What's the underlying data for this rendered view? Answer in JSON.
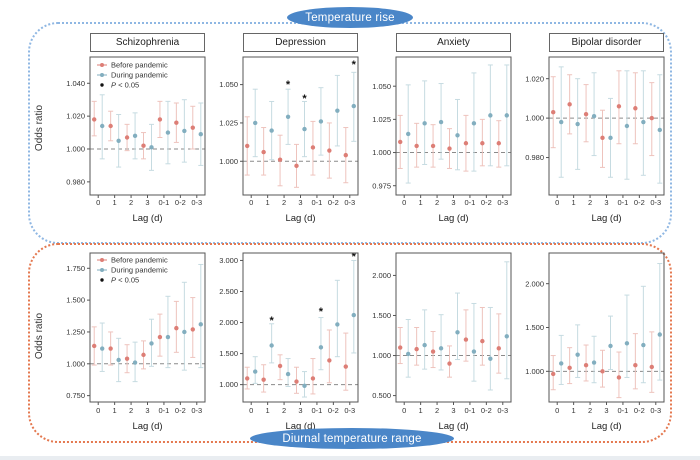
{
  "badges": {
    "top": "Temperature rise",
    "bottom": "Diurnal temperature range"
  },
  "legend": {
    "before": "Before pandemic",
    "during": "During pandemic",
    "pvalue": "P < 0.05"
  },
  "axis": {
    "xlabel": "Lag (d)",
    "ylabel": "Odds ratio",
    "categories": [
      "0",
      "1",
      "2",
      "3",
      "0-1",
      "0-2",
      "0-3"
    ]
  },
  "colors": {
    "before_marker": "#dd7e76",
    "before_bar": "#eec3bd",
    "during_marker": "#82aebf",
    "during_bar": "#c6dbe1",
    "star": "#111111",
    "ref_line": "#8a8a8a",
    "plot_border": "#555555",
    "badge_blue": "#4a86c8",
    "box_top_border": "#8fb7e3",
    "box_bottom_border": "#e4784f"
  },
  "chart_data": [
    {
      "type": "scatter",
      "row": "top",
      "group": "Temperature rise",
      "title": "Schizophrenia",
      "show_title": true,
      "show_legend": true,
      "ref_line": 1.0,
      "yticks": [
        0.98,
        1.0,
        1.02,
        1.04
      ],
      "ylim": [
        0.972,
        1.056
      ],
      "categories": [
        "0",
        "1",
        "2",
        "3",
        "0-1",
        "0-2",
        "0-3"
      ],
      "series": [
        {
          "name": "Before pandemic",
          "values": [
            1.018,
            1.014,
            1.007,
            1.002,
            1.018,
            1.016,
            1.013
          ],
          "lo": [
            1.008,
            1.005,
            0.999,
            0.994,
            1.007,
            1.004,
            1.0
          ],
          "hi": [
            1.029,
            1.023,
            1.015,
            1.01,
            1.029,
            1.028,
            1.026
          ]
        },
        {
          "name": "During pandemic",
          "values": [
            1.014,
            1.005,
            1.008,
            1.001,
            1.01,
            1.011,
            1.009
          ],
          "lo": [
            0.994,
            0.989,
            0.994,
            0.987,
            0.991,
            0.992,
            0.99
          ],
          "hi": [
            1.033,
            1.021,
            1.022,
            1.015,
            1.029,
            1.03,
            1.028
          ]
        }
      ]
    },
    {
      "type": "scatter",
      "row": "top",
      "group": "Temperature rise",
      "title": "Depression",
      "show_title": true,
      "show_legend": false,
      "ref_line": 1.0,
      "yticks": [
        1.0,
        1.025,
        1.05
      ],
      "ylim": [
        0.978,
        1.068
      ],
      "categories": [
        "0",
        "1",
        "2",
        "3",
        "0-1",
        "0-2",
        "0-3"
      ],
      "series": [
        {
          "name": "Before pandemic",
          "values": [
            1.01,
            1.006,
            1.001,
            0.997,
            1.009,
            1.007,
            1.004
          ],
          "lo": [
            0.991,
            0.991,
            0.984,
            0.983,
            0.991,
            0.989,
            0.986
          ],
          "hi": [
            1.029,
            1.022,
            1.017,
            1.011,
            1.026,
            1.025,
            1.022
          ]
        },
        {
          "name": "During pandemic",
          "values": [
            1.025,
            1.02,
            1.029,
            1.021,
            1.026,
            1.033,
            1.036
          ],
          "lo": [
            1.003,
            1.001,
            1.011,
            1.003,
            1.004,
            1.01,
            1.013
          ],
          "hi": [
            1.047,
            1.039,
            1.047,
            1.039,
            1.048,
            1.056,
            1.058
          ],
          "stars": [
            null,
            null,
            1.05,
            1.041,
            null,
            null,
            1.063
          ]
        }
      ]
    },
    {
      "type": "scatter",
      "row": "top",
      "group": "Temperature rise",
      "title": "Anxiety",
      "show_title": true,
      "show_legend": false,
      "ref_line": 1.0,
      "yticks": [
        0.975,
        1.0,
        1.025,
        1.05
      ],
      "ylim": [
        0.968,
        1.072
      ],
      "categories": [
        "0",
        "1",
        "2",
        "3",
        "0-1",
        "0-2",
        "0-3"
      ],
      "series": [
        {
          "name": "Before pandemic",
          "values": [
            1.008,
            1.005,
            1.005,
            1.003,
            1.007,
            1.007,
            1.007
          ],
          "lo": [
            0.988,
            0.989,
            0.989,
            0.988,
            0.986,
            0.99,
            0.989
          ],
          "hi": [
            1.028,
            1.022,
            1.021,
            1.018,
            1.028,
            1.025,
            1.024
          ]
        },
        {
          "name": "During pandemic",
          "values": [
            1.014,
            1.022,
            1.023,
            1.013,
            1.022,
            1.028,
            1.028
          ],
          "lo": [
            0.977,
            0.991,
            0.995,
            0.987,
            0.986,
            0.99,
            0.99
          ],
          "hi": [
            1.051,
            1.054,
            1.052,
            1.04,
            1.06,
            1.066,
            1.066
          ]
        }
      ]
    },
    {
      "type": "scatter",
      "row": "top",
      "group": "Temperature rise",
      "title": "Bipolar disorder",
      "show_title": true,
      "show_legend": false,
      "ref_line": 1.0,
      "yticks": [
        0.98,
        1.0,
        1.02
      ],
      "ylim": [
        0.961,
        1.031
      ],
      "categories": [
        "0",
        "1",
        "2",
        "3",
        "0-1",
        "0-2",
        "0-3"
      ],
      "series": [
        {
          "name": "Before pandemic",
          "values": [
            1.003,
            1.007,
            1.002,
            0.99,
            1.006,
            1.005,
            1.0
          ],
          "lo": [
            0.985,
            0.992,
            0.988,
            0.975,
            0.987,
            0.987,
            0.981
          ],
          "hi": [
            1.021,
            1.022,
            1.017,
            1.004,
            1.024,
            1.023,
            1.018
          ]
        },
        {
          "name": "During pandemic",
          "values": [
            0.998,
            0.997,
            1.001,
            0.99,
            0.996,
            0.998,
            0.994
          ],
          "lo": [
            0.97,
            0.974,
            0.981,
            0.97,
            0.969,
            0.971,
            0.967
          ],
          "hi": [
            1.026,
            1.02,
            1.023,
            1.01,
            1.024,
            1.024,
            1.022
          ]
        }
      ]
    },
    {
      "type": "scatter",
      "row": "bottom",
      "group": "Diurnal temperature range",
      "title": "Schizophrenia",
      "show_title": false,
      "show_legend": true,
      "ref_line": 1.0,
      "yticks": [
        0.75,
        1.0,
        1.25,
        1.5,
        1.75
      ],
      "ylim": [
        0.7,
        1.87
      ],
      "categories": [
        "0",
        "1",
        "2",
        "3",
        "0-1",
        "0-2",
        "0-3"
      ],
      "series": [
        {
          "name": "Before pandemic",
          "values": [
            1.14,
            1.12,
            1.04,
            1.07,
            1.21,
            1.28,
            1.27
          ],
          "lo": [
            0.99,
            0.99,
            0.93,
            0.96,
            1.06,
            1.09,
            1.05
          ],
          "hi": [
            1.29,
            1.25,
            1.15,
            1.18,
            1.39,
            1.49,
            1.52
          ]
        },
        {
          "name": "During pandemic",
          "values": [
            1.12,
            1.03,
            1.01,
            1.16,
            1.21,
            1.25,
            1.31
          ],
          "lo": [
            0.94,
            0.86,
            0.86,
            0.98,
            0.97,
            0.95,
            0.97
          ],
          "hi": [
            1.32,
            1.2,
            1.17,
            1.35,
            1.53,
            1.64,
            1.78
          ]
        }
      ]
    },
    {
      "type": "scatter",
      "row": "bottom",
      "group": "Diurnal temperature range",
      "title": "Depression",
      "show_title": false,
      "show_legend": false,
      "ref_line": 1.0,
      "yticks": [
        1.0,
        1.5,
        2.0,
        2.5,
        3.0
      ],
      "ylim": [
        0.72,
        3.12
      ],
      "categories": [
        "0",
        "1",
        "2",
        "3",
        "0-1",
        "0-2",
        "0-3"
      ],
      "series": [
        {
          "name": "Before pandemic",
          "values": [
            1.1,
            1.08,
            1.3,
            1.05,
            1.1,
            1.39,
            1.29
          ],
          "lo": [
            0.93,
            0.88,
            1.08,
            0.86,
            0.85,
            1.03,
            0.91
          ],
          "hi": [
            1.28,
            1.32,
            1.48,
            1.28,
            1.42,
            1.88,
            1.83
          ]
        },
        {
          "name": "During pandemic",
          "values": [
            1.21,
            1.63,
            1.17,
            0.98,
            1.6,
            1.97,
            2.12
          ],
          "lo": [
            1.02,
            1.35,
            0.97,
            0.8,
            1.24,
            1.45,
            1.51
          ],
          "hi": [
            1.45,
            1.98,
            1.42,
            1.21,
            2.08,
            2.68,
            3.0
          ],
          "stars": [
            null,
            2.03,
            null,
            null,
            2.18,
            null,
            3.06
          ]
        }
      ]
    },
    {
      "type": "scatter",
      "row": "bottom",
      "group": "Diurnal temperature range",
      "title": "Anxiety",
      "show_title": false,
      "show_legend": false,
      "ref_line": 1.0,
      "yticks": [
        0.5,
        1.0,
        1.5,
        2.0
      ],
      "ylim": [
        0.42,
        2.28
      ],
      "categories": [
        "0",
        "1",
        "2",
        "3",
        "0-1",
        "0-2",
        "0-3"
      ],
      "series": [
        {
          "name": "Before pandemic",
          "values": [
            1.1,
            1.08,
            1.05,
            0.9,
            1.2,
            1.18,
            1.09
          ],
          "lo": [
            0.9,
            0.88,
            0.85,
            0.73,
            0.93,
            0.88,
            0.78
          ],
          "hi": [
            1.35,
            1.35,
            1.3,
            1.12,
            1.57,
            1.6,
            1.52
          ]
        },
        {
          "name": "During pandemic",
          "values": [
            1.02,
            1.13,
            1.09,
            1.29,
            1.05,
            0.96,
            1.24
          ],
          "lo": [
            0.73,
            0.83,
            0.82,
            0.95,
            0.68,
            0.57,
            0.71
          ],
          "hi": [
            1.45,
            1.57,
            1.51,
            1.78,
            1.65,
            1.6,
            2.17
          ]
        }
      ]
    },
    {
      "type": "scatter",
      "row": "bottom",
      "group": "Diurnal temperature range",
      "title": "Bipolar disorder",
      "show_title": false,
      "show_legend": false,
      "ref_line": 1.0,
      "yticks": [
        1.0,
        1.5,
        2.0
      ],
      "ylim": [
        0.65,
        2.35
      ],
      "categories": [
        "0",
        "1",
        "2",
        "3",
        "0-1",
        "0-2",
        "0-3"
      ],
      "series": [
        {
          "name": "Before pandemic",
          "values": [
            0.97,
            1.04,
            1.07,
            1.0,
            0.93,
            1.07,
            1.05
          ],
          "lo": [
            0.79,
            0.86,
            0.89,
            0.82,
            0.7,
            0.8,
            0.76
          ],
          "hi": [
            1.18,
            1.27,
            1.3,
            1.24,
            1.22,
            1.43,
            1.45
          ]
        },
        {
          "name": "During pandemic",
          "values": [
            1.09,
            1.19,
            1.1,
            1.29,
            1.32,
            1.3,
            1.42
          ],
          "lo": [
            0.85,
            0.93,
            0.87,
            1.02,
            0.93,
            0.87,
            0.9
          ],
          "hi": [
            1.41,
            1.53,
            1.4,
            1.63,
            1.87,
            1.97,
            2.23
          ]
        }
      ]
    }
  ]
}
